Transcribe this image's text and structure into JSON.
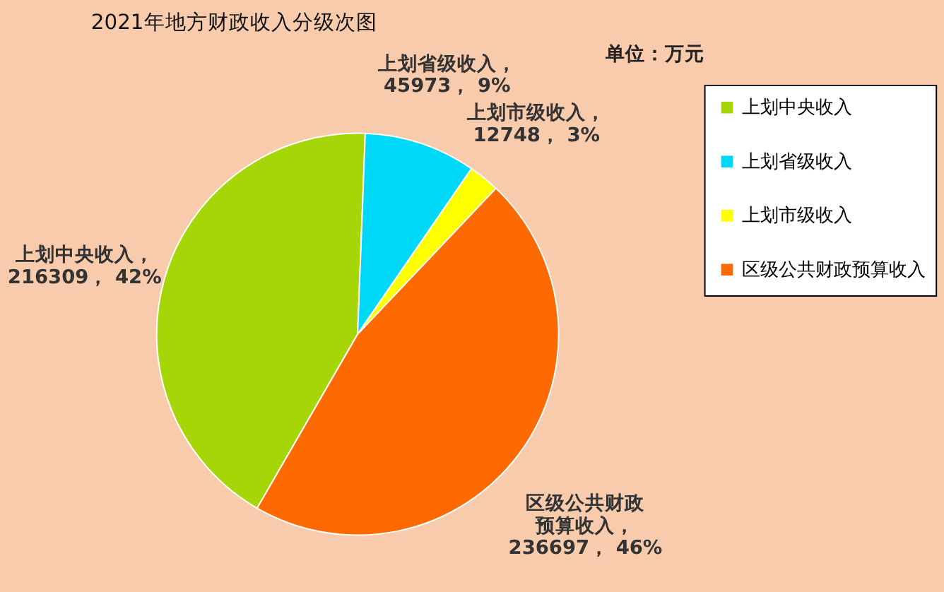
{
  "chart_data": {
    "type": "pie",
    "title": "2021年地方财政收入分级次图",
    "annotations": [
      "单位：万元"
    ],
    "categories": [
      "上划中央收入",
      "上划省级收入",
      "上划市级收入",
      "区级公共财政预算收入"
    ],
    "values": [
      216309,
      45973,
      12748,
      236697
    ],
    "value_labels": [
      "上划中央收入，\n216309， 42%",
      "上划省级收入，\n45973， 9%",
      "上划市级收入，\n12748， 3%",
      "区级公共财政预算收入，\n236697， 46%"
    ],
    "colors": [
      "#a6d608",
      "#00d8f8",
      "#ffff00",
      "#ff6a00"
    ],
    "legend": "right"
  }
}
